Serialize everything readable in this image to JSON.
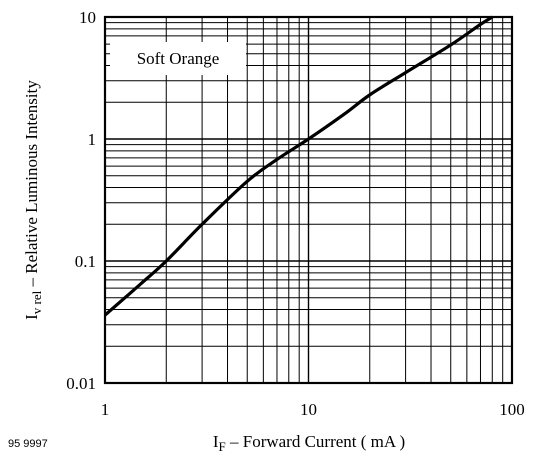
{
  "chart_data": {
    "type": "line",
    "x_scale": "log",
    "y_scale": "log",
    "xlim": [
      1,
      100
    ],
    "ylim": [
      0.01,
      10
    ],
    "xlabel": {
      "main": "I",
      "sub": "F",
      "rest": " – Forward Current ( mA )"
    },
    "ylabel": {
      "main": "I",
      "sub": "v rel",
      "rest": "  – Relative Luminous Intensity"
    },
    "x_ticks": [
      {
        "value": 1,
        "label": "1"
      },
      {
        "value": 10,
        "label": "10"
      },
      {
        "value": 100,
        "label": "100"
      }
    ],
    "y_ticks": [
      {
        "value": 0.01,
        "label": "0.01"
      },
      {
        "value": 0.1,
        "label": "0.1"
      },
      {
        "value": 1,
        "label": "1"
      },
      {
        "value": 10,
        "label": "10"
      }
    ],
    "grid": true,
    "annotation": "Soft Orange",
    "figure_code": "95 9997",
    "series": [
      {
        "x": [
          1,
          1.5,
          2,
          3,
          5,
          7,
          10,
          15,
          20,
          30,
          50,
          70,
          80
        ],
        "y": [
          0.036,
          0.065,
          0.1,
          0.2,
          0.45,
          0.68,
          1.0,
          1.6,
          2.3,
          3.5,
          5.9,
          8.7,
          10
        ]
      }
    ],
    "colors": {
      "line": "#000000",
      "grid": "#000000",
      "background": "#ffffff"
    }
  }
}
